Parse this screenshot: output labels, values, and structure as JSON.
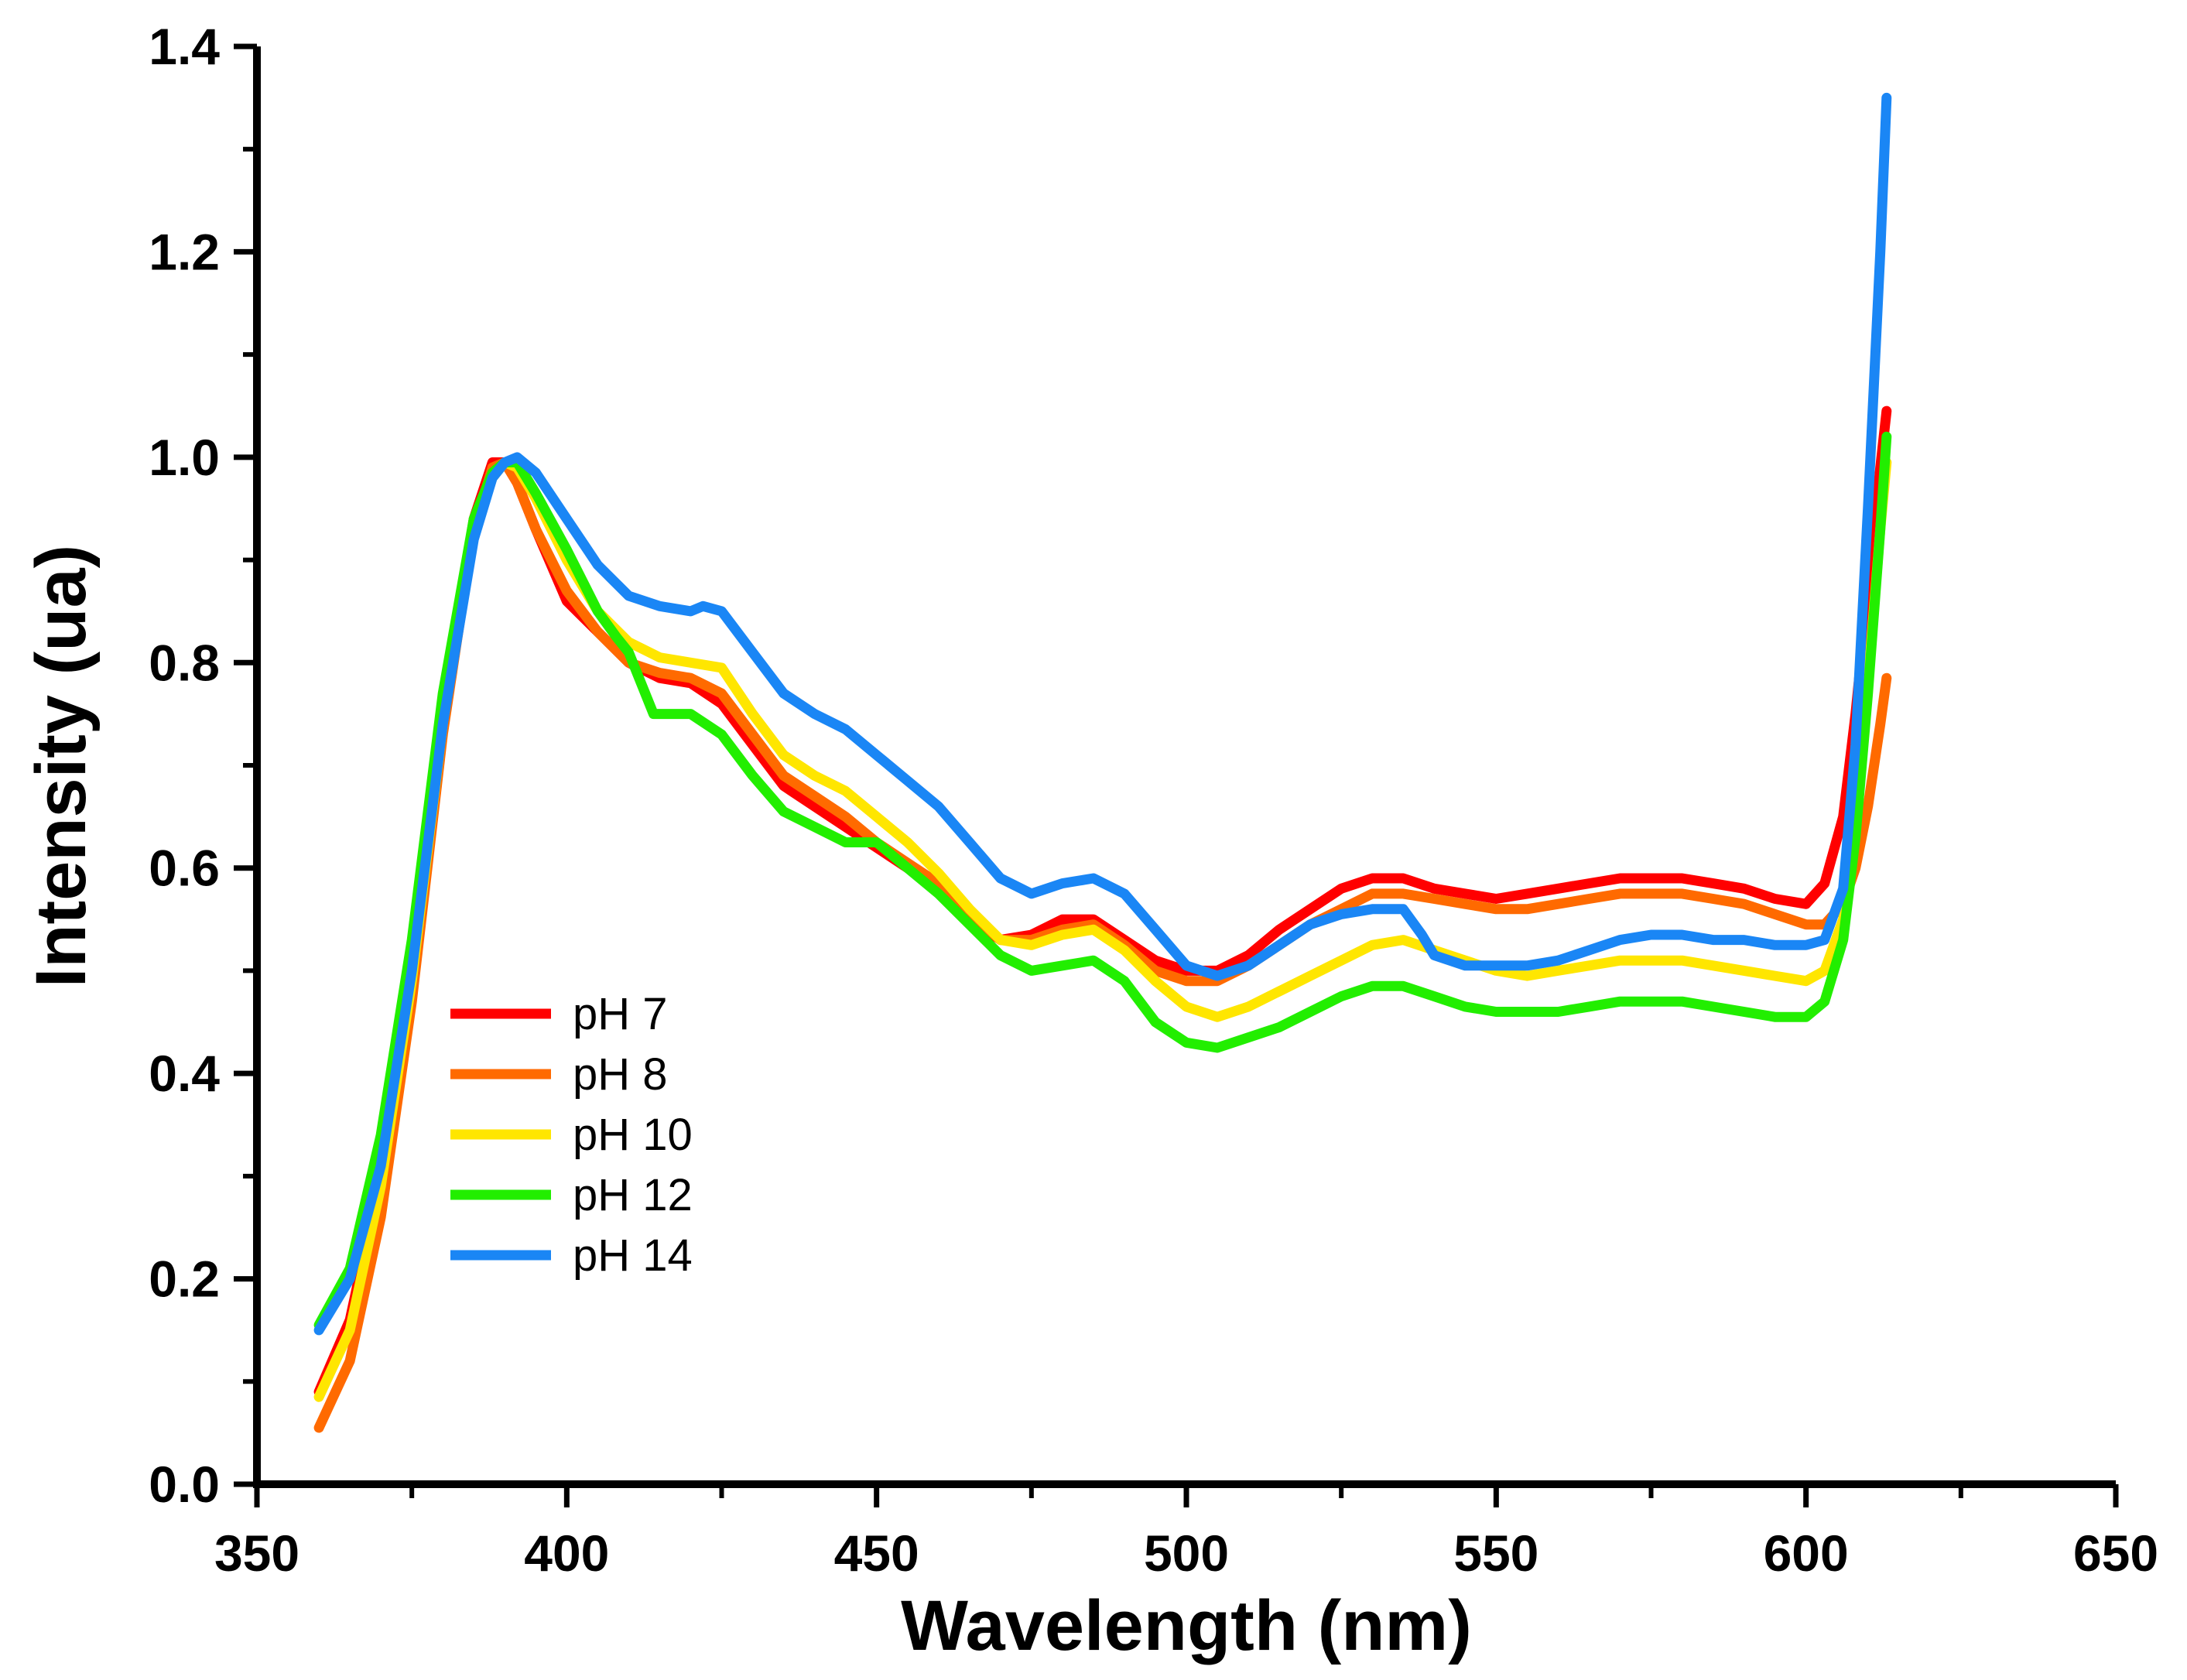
{
  "chart_data": {
    "type": "line",
    "title": "",
    "xlabel": "Wavelength (nm)",
    "ylabel": "Intensity (ua)",
    "xlim": [
      350,
      650
    ],
    "ylim": [
      0.0,
      1.4
    ],
    "x_ticks": [
      350,
      400,
      450,
      500,
      550,
      600,
      650
    ],
    "x_tick_labels": [
      "350",
      "400",
      "450",
      "500",
      "550",
      "600",
      "650"
    ],
    "y_ticks": [
      0.0,
      0.2,
      0.4,
      0.6,
      0.8,
      1.0,
      1.2,
      1.4
    ],
    "y_tick_labels": [
      "0.0",
      "0.2",
      "0.4",
      "0.6",
      "0.8",
      "1.0",
      "1.2",
      "1.4"
    ],
    "grid": false,
    "legend_position": "lower-left",
    "series": [
      {
        "name": "pH 7",
        "color": "#ff0000",
        "x": [
          360,
          365,
          370,
          375,
          380,
          385,
          388,
          390,
          392,
          395,
          400,
          405,
          410,
          415,
          420,
          425,
          430,
          435,
          440,
          445,
          450,
          455,
          460,
          465,
          470,
          475,
          480,
          485,
          490,
          495,
          500,
          505,
          510,
          515,
          520,
          525,
          530,
          535,
          540,
          545,
          550,
          555,
          560,
          565,
          570,
          575,
          580,
          585,
          590,
          595,
          600,
          603,
          606,
          608,
          610,
          612,
          613
        ],
        "y": [
          0.09,
          0.16,
          0.3,
          0.5,
          0.75,
          0.94,
          0.995,
          0.995,
          0.975,
          0.93,
          0.86,
          0.83,
          0.8,
          0.785,
          0.78,
          0.76,
          0.72,
          0.68,
          0.66,
          0.64,
          0.62,
          0.6,
          0.58,
          0.55,
          0.53,
          0.535,
          0.55,
          0.55,
          0.53,
          0.51,
          0.5,
          0.5,
          0.515,
          0.54,
          0.56,
          0.58,
          0.59,
          0.59,
          0.58,
          0.575,
          0.57,
          0.575,
          0.58,
          0.585,
          0.59,
          0.59,
          0.59,
          0.585,
          0.58,
          0.57,
          0.565,
          0.585,
          0.65,
          0.75,
          0.87,
          0.99,
          1.045
        ]
      },
      {
        "name": "pH 8",
        "color": "#ff6a00",
        "x": [
          360,
          365,
          370,
          375,
          380,
          385,
          388,
          390,
          392,
          395,
          400,
          405,
          410,
          415,
          420,
          425,
          430,
          435,
          440,
          445,
          450,
          455,
          460,
          465,
          470,
          475,
          480,
          485,
          490,
          495,
          500,
          505,
          510,
          515,
          520,
          525,
          530,
          535,
          540,
          545,
          550,
          555,
          560,
          565,
          570,
          575,
          580,
          585,
          590,
          595,
          600,
          603,
          606,
          608,
          610,
          612,
          613
        ],
        "y": [
          0.055,
          0.12,
          0.26,
          0.47,
          0.73,
          0.93,
          0.99,
          0.995,
          0.975,
          0.93,
          0.87,
          0.83,
          0.8,
          0.79,
          0.785,
          0.77,
          0.73,
          0.69,
          0.67,
          0.65,
          0.625,
          0.605,
          0.585,
          0.555,
          0.53,
          0.53,
          0.54,
          0.545,
          0.525,
          0.5,
          0.49,
          0.49,
          0.505,
          0.525,
          0.545,
          0.56,
          0.575,
          0.575,
          0.57,
          0.565,
          0.56,
          0.56,
          0.565,
          0.57,
          0.575,
          0.575,
          0.575,
          0.57,
          0.565,
          0.555,
          0.545,
          0.545,
          0.565,
          0.6,
          0.66,
          0.74,
          0.785
        ]
      },
      {
        "name": "pH 10",
        "color": "#ffe600",
        "x": [
          360,
          365,
          370,
          375,
          380,
          385,
          388,
          390,
          392,
          395,
          400,
          405,
          410,
          415,
          420,
          425,
          430,
          435,
          440,
          445,
          450,
          455,
          460,
          465,
          470,
          475,
          480,
          485,
          490,
          495,
          500,
          505,
          510,
          515,
          520,
          525,
          530,
          535,
          540,
          545,
          550,
          555,
          560,
          565,
          570,
          575,
          580,
          585,
          590,
          595,
          600,
          603,
          606,
          608,
          610,
          612,
          613
        ],
        "y": [
          0.085,
          0.15,
          0.29,
          0.49,
          0.74,
          0.93,
          0.98,
          0.995,
          0.99,
          0.96,
          0.9,
          0.85,
          0.82,
          0.805,
          0.8,
          0.795,
          0.75,
          0.71,
          0.69,
          0.675,
          0.65,
          0.625,
          0.595,
          0.56,
          0.53,
          0.525,
          0.535,
          0.54,
          0.52,
          0.49,
          0.465,
          0.455,
          0.465,
          0.48,
          0.495,
          0.51,
          0.525,
          0.53,
          0.52,
          0.51,
          0.5,
          0.495,
          0.5,
          0.505,
          0.51,
          0.51,
          0.51,
          0.505,
          0.5,
          0.495,
          0.49,
          0.5,
          0.55,
          0.65,
          0.78,
          0.93,
          0.995
        ]
      },
      {
        "name": "pH 12",
        "color": "#22ee00",
        "x": [
          360,
          365,
          370,
          375,
          380,
          385,
          388,
          390,
          392,
          395,
          400,
          405,
          408,
          410,
          412,
          414,
          416,
          420,
          425,
          430,
          435,
          440,
          445,
          448,
          450,
          455,
          460,
          465,
          470,
          475,
          480,
          485,
          490,
          495,
          500,
          505,
          510,
          515,
          520,
          525,
          530,
          535,
          540,
          545,
          550,
          555,
          560,
          565,
          570,
          575,
          580,
          585,
          590,
          595,
          600,
          603,
          606,
          608,
          610,
          612,
          613
        ],
        "y": [
          0.155,
          0.21,
          0.34,
          0.53,
          0.77,
          0.94,
          0.985,
          0.995,
          0.995,
          0.965,
          0.91,
          0.85,
          0.825,
          0.81,
          0.78,
          0.75,
          0.75,
          0.75,
          0.73,
          0.69,
          0.655,
          0.64,
          0.625,
          0.625,
          0.625,
          0.6,
          0.575,
          0.545,
          0.515,
          0.5,
          0.505,
          0.51,
          0.49,
          0.45,
          0.43,
          0.425,
          0.435,
          0.445,
          0.46,
          0.475,
          0.485,
          0.485,
          0.475,
          0.465,
          0.46,
          0.46,
          0.46,
          0.465,
          0.47,
          0.47,
          0.47,
          0.465,
          0.46,
          0.455,
          0.455,
          0.47,
          0.53,
          0.63,
          0.77,
          0.93,
          1.02
        ]
      },
      {
        "name": "pH 14",
        "color": "#1a86f5",
        "x": [
          360,
          365,
          370,
          375,
          380,
          385,
          388,
          390,
          392,
          395,
          400,
          405,
          410,
          415,
          420,
          422,
          425,
          430,
          435,
          440,
          445,
          450,
          455,
          460,
          465,
          470,
          475,
          480,
          485,
          490,
          495,
          500,
          505,
          510,
          515,
          520,
          525,
          530,
          535,
          538,
          540,
          545,
          550,
          555,
          560,
          565,
          570,
          575,
          580,
          585,
          590,
          595,
          600,
          603,
          606,
          608,
          610,
          612,
          613
        ],
        "y": [
          0.15,
          0.2,
          0.31,
          0.5,
          0.74,
          0.92,
          0.98,
          0.995,
          1.0,
          0.985,
          0.94,
          0.895,
          0.865,
          0.855,
          0.85,
          0.855,
          0.85,
          0.81,
          0.77,
          0.75,
          0.735,
          0.71,
          0.685,
          0.66,
          0.625,
          0.59,
          0.575,
          0.585,
          0.59,
          0.575,
          0.54,
          0.505,
          0.495,
          0.505,
          0.525,
          0.545,
          0.555,
          0.56,
          0.56,
          0.535,
          0.515,
          0.505,
          0.505,
          0.505,
          0.51,
          0.52,
          0.53,
          0.535,
          0.535,
          0.53,
          0.53,
          0.525,
          0.525,
          0.53,
          0.58,
          0.72,
          0.95,
          1.2,
          1.35
        ]
      }
    ]
  }
}
